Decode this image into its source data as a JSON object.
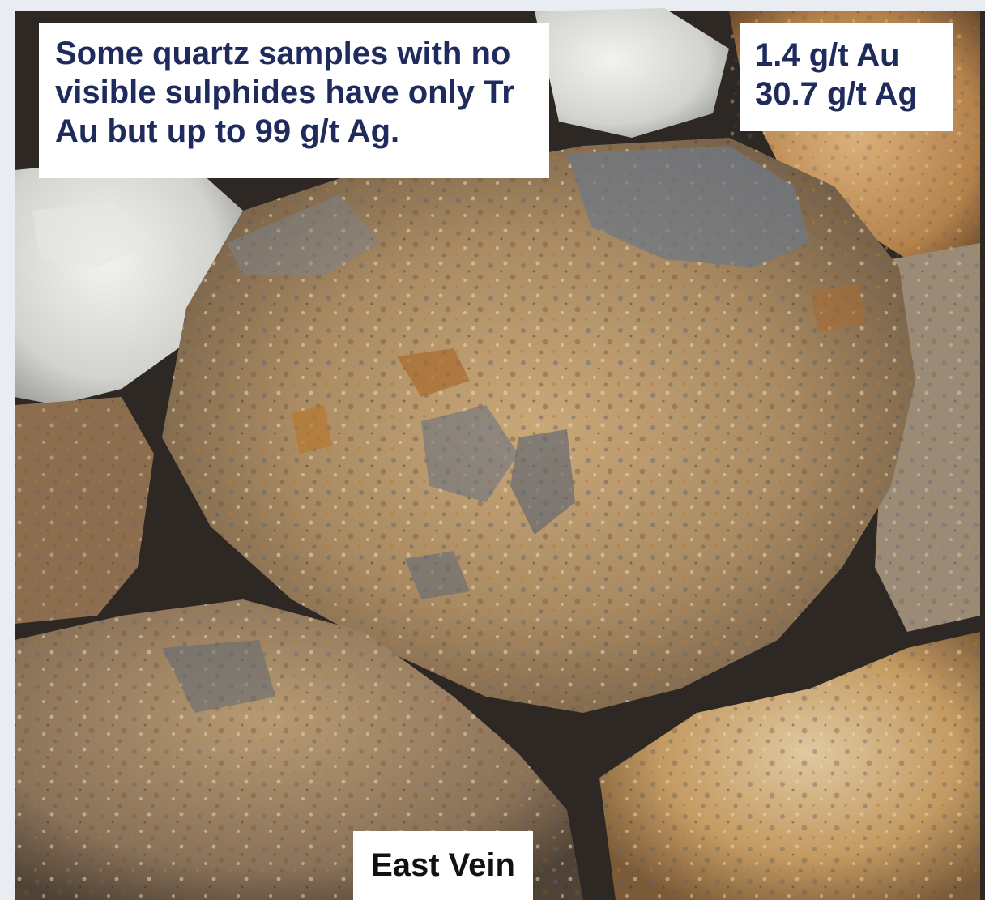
{
  "image": {
    "subject": "quartz vein rock samples",
    "palette": {
      "rust": "#b07a3a",
      "tan": "#d6b98a",
      "grey_blue": "#6f7884",
      "white_quartz": "#dcdcd6",
      "shadow": "#2a2622"
    }
  },
  "annotations": {
    "main_note": "Some quartz samples with no visible sulphides have only Tr Au but up to 99 g/t Ag.",
    "assay_au": "1.4 g/t Au",
    "assay_ag": "30.7 g/t Ag",
    "location": "East Vein"
  },
  "colors": {
    "caption_text": "#1f2b5c",
    "caption_bg": "#ffffff"
  }
}
